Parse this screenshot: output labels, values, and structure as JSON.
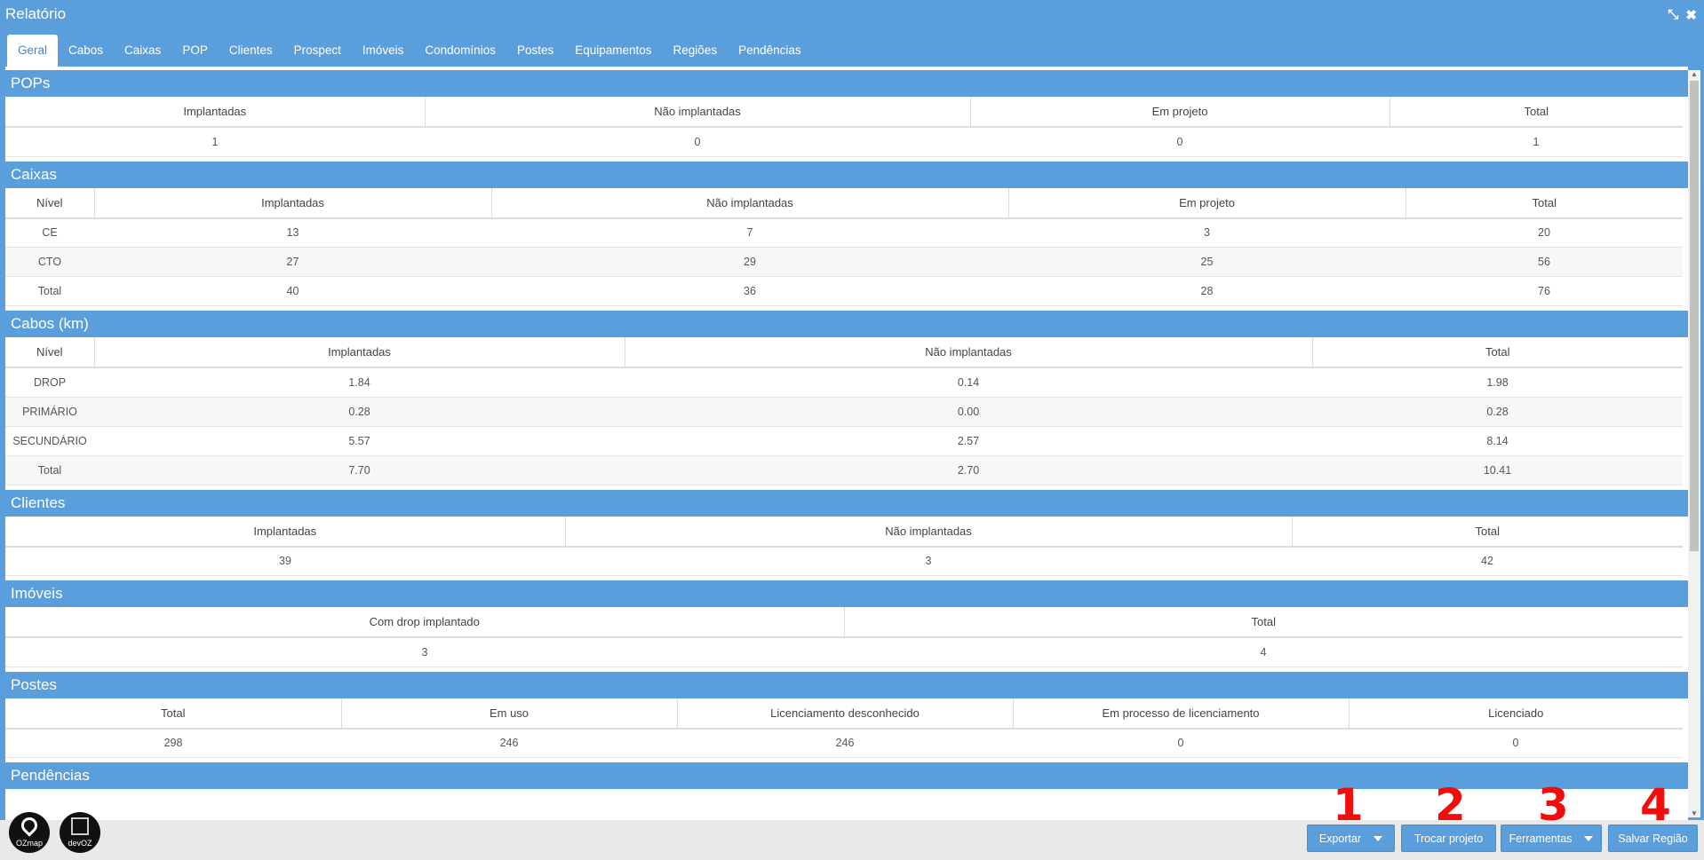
{
  "window": {
    "title": "Relatório"
  },
  "tabs": [
    "Geral",
    "Cabos",
    "Caixas",
    "POP",
    "Clientes",
    "Prospect",
    "Imóveis",
    "Condomínios",
    "Postes",
    "Equipamentos",
    "Regiões",
    "Pendências"
  ],
  "pops": {
    "title": "POPs",
    "headers": [
      "Implantadas",
      "Não implantadas",
      "Em projeto",
      "Total"
    ],
    "row": [
      "1",
      "0",
      "0",
      "1"
    ]
  },
  "caixas": {
    "title": "Caixas",
    "headers": [
      "Nível",
      "Implantadas",
      "Não implantadas",
      "Em projeto",
      "Total"
    ],
    "rows": [
      [
        "CE",
        "13",
        "7",
        "3",
        "20"
      ],
      [
        "CTO",
        "27",
        "29",
        "25",
        "56"
      ],
      [
        "Total",
        "40",
        "36",
        "28",
        "76"
      ]
    ]
  },
  "cabos": {
    "title": "Cabos (km)",
    "headers": [
      "Nível",
      "Implantadas",
      "Não implantadas",
      "Total"
    ],
    "rows": [
      [
        "DROP",
        "1.84",
        "0.14",
        "1.98"
      ],
      [
        "PRIMÁRIO",
        "0.28",
        "0.00",
        "0.28"
      ],
      [
        "SECUNDÁRIO",
        "5.57",
        "2.57",
        "8.14"
      ],
      [
        "Total",
        "7.70",
        "2.70",
        "10.41"
      ]
    ]
  },
  "clientes": {
    "title": "Clientes",
    "headers": [
      "Implantadas",
      "Não implantadas",
      "Total"
    ],
    "row": [
      "39",
      "3",
      "42"
    ]
  },
  "imoveis": {
    "title": "Imóveis",
    "headers": [
      "Com drop implantado",
      "Total"
    ],
    "row": [
      "3",
      "4"
    ]
  },
  "postes": {
    "title": "Postes",
    "headers": [
      "Total",
      "Em uso",
      "Licenciamento desconhecido",
      "Em processo de licenciamento",
      "Licenciado"
    ],
    "row": [
      "298",
      "246",
      "246",
      "0",
      "0"
    ]
  },
  "pendencias": {
    "title": "Pendências"
  },
  "logos": {
    "ozmap": "OZmap",
    "devoz": "devOZ"
  },
  "footer": {
    "exportar": "Exportar",
    "trocar_projeto": "Trocar projeto",
    "ferramentas": "Ferramentas",
    "salvar_regiao": "Salvar Região"
  },
  "annotations": [
    "1",
    "2",
    "3",
    "4"
  ],
  "colors": {
    "header_blue": "#5b9edc",
    "annotation_red": "#f20c0c"
  }
}
